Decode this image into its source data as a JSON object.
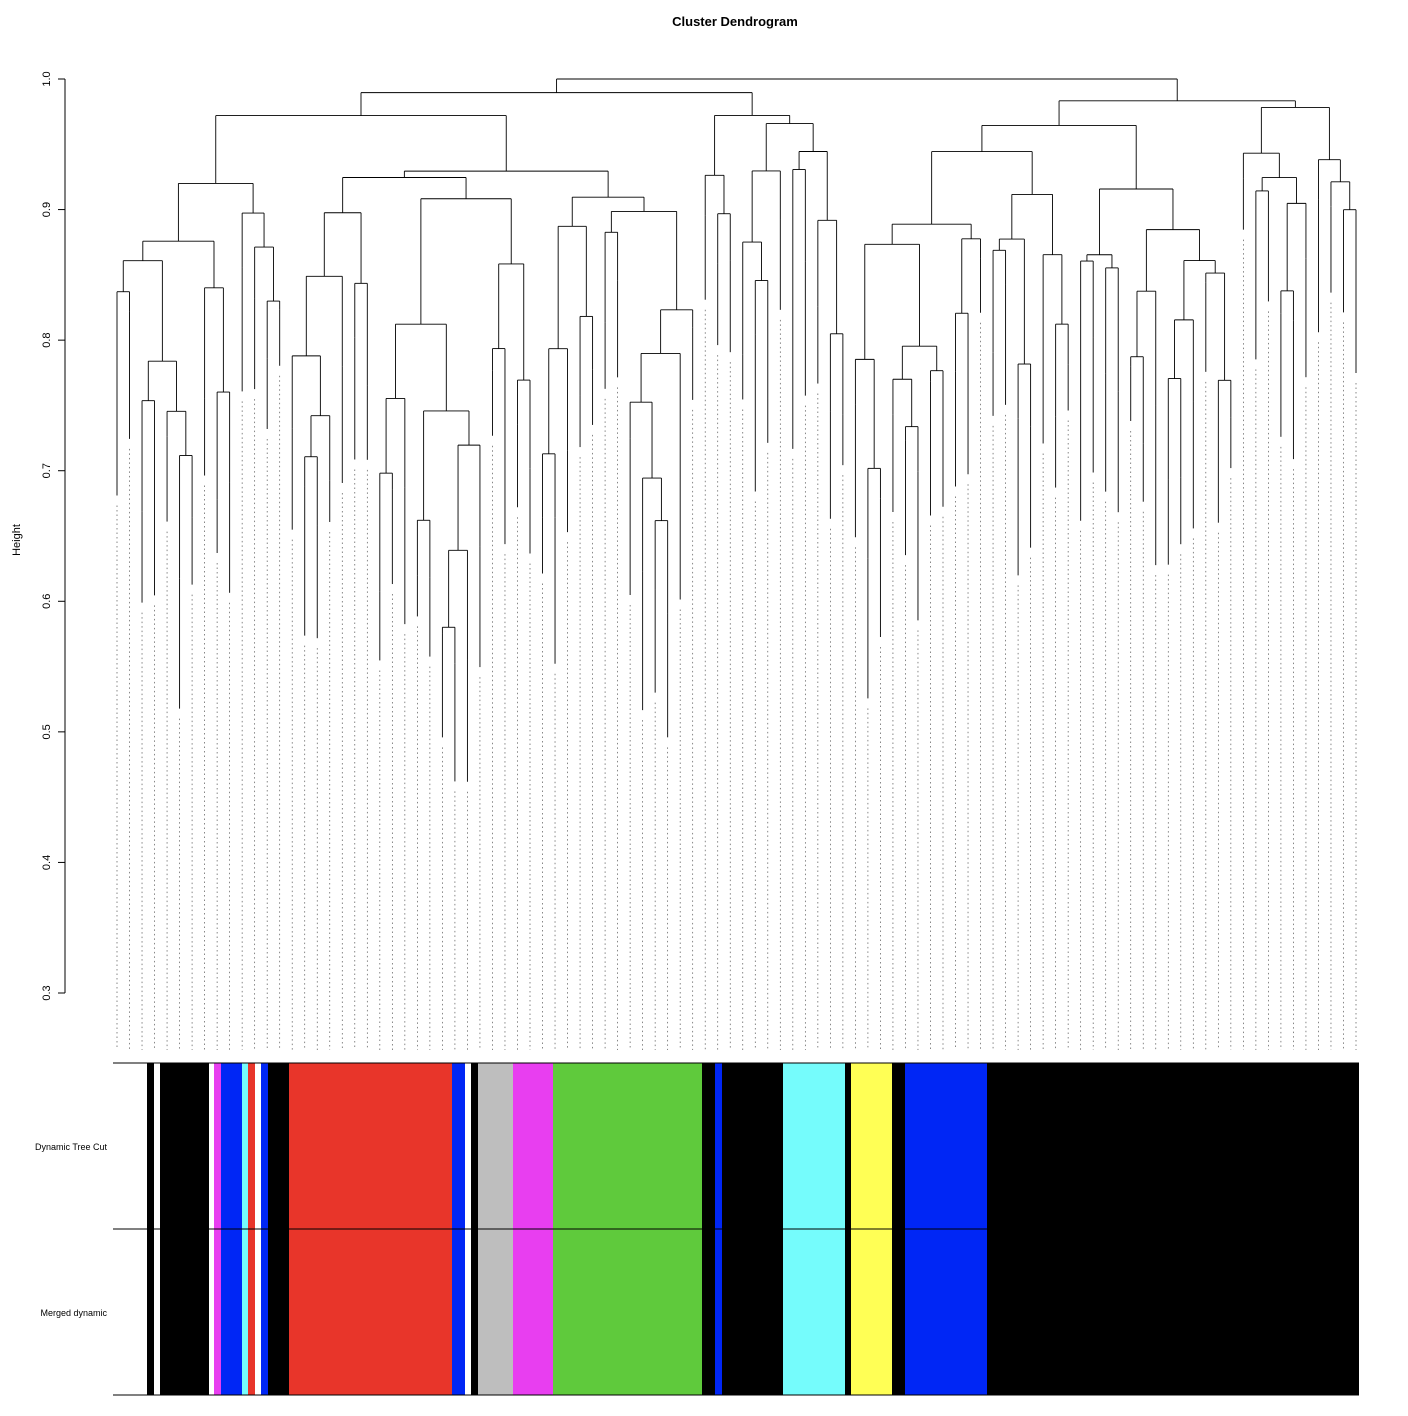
{
  "chart_data": {
    "type": "dendrogram",
    "title": "Cluster Dendrogram",
    "ylabel": "Height",
    "xlabel": "",
    "ylim": [
      0.3,
      1.0
    ],
    "yticks": [
      {
        "value": 0.3,
        "label": "0.3"
      },
      {
        "value": 0.4,
        "label": "0.4"
      },
      {
        "value": 0.5,
        "label": "0.5"
      },
      {
        "value": 0.6,
        "label": "0.6"
      },
      {
        "value": 0.7,
        "label": "0.7"
      },
      {
        "value": 0.8,
        "label": "0.8"
      },
      {
        "value": 0.9,
        "label": "0.9"
      },
      {
        "value": 1.0,
        "label": "1.0"
      }
    ],
    "color_rows": [
      {
        "label": "Dynamic Tree Cut",
        "segments": [
          {
            "x0": 113,
            "x1": 147,
            "color": "#ffffff"
          },
          {
            "x0": 147,
            "x1": 154,
            "color": "#000000"
          },
          {
            "x0": 154,
            "x1": 160,
            "color": "#ffffff"
          },
          {
            "x0": 160,
            "x1": 209,
            "color": "#000000"
          },
          {
            "x0": 209,
            "x1": 214,
            "color": "#ffffff"
          },
          {
            "x0": 214,
            "x1": 221,
            "color": "#e83ef0"
          },
          {
            "x0": 221,
            "x1": 242,
            "color": "#0026f5"
          },
          {
            "x0": 242,
            "x1": 248,
            "color": "#75fcfc"
          },
          {
            "x0": 248,
            "x1": 255,
            "color": "#e8352a"
          },
          {
            "x0": 255,
            "x1": 261,
            "color": "#ffffff"
          },
          {
            "x0": 261,
            "x1": 268,
            "color": "#0026f5"
          },
          {
            "x0": 268,
            "x1": 289,
            "color": "#000000"
          },
          {
            "x0": 289,
            "x1": 452,
            "color": "#e8352a"
          },
          {
            "x0": 452,
            "x1": 465,
            "color": "#0026f5"
          },
          {
            "x0": 465,
            "x1": 471,
            "color": "#ffffff"
          },
          {
            "x0": 471,
            "x1": 478,
            "color": "#000000"
          },
          {
            "x0": 478,
            "x1": 513,
            "color": "#bebebe"
          },
          {
            "x0": 513,
            "x1": 553,
            "color": "#e83ef0"
          },
          {
            "x0": 553,
            "x1": 702,
            "color": "#5fca3c"
          },
          {
            "x0": 702,
            "x1": 715,
            "color": "#000000"
          },
          {
            "x0": 715,
            "x1": 722,
            "color": "#0026f5"
          },
          {
            "x0": 722,
            "x1": 783,
            "color": "#000000"
          },
          {
            "x0": 783,
            "x1": 845,
            "color": "#75fcfc"
          },
          {
            "x0": 845,
            "x1": 851,
            "color": "#000000"
          },
          {
            "x0": 851,
            "x1": 892,
            "color": "#ffff55"
          },
          {
            "x0": 892,
            "x1": 905,
            "color": "#000000"
          },
          {
            "x0": 905,
            "x1": 987,
            "color": "#0026f5"
          },
          {
            "x0": 987,
            "x1": 1359,
            "color": "#000000"
          }
        ]
      },
      {
        "label": "Merged dynamic",
        "segments": [
          {
            "x0": 113,
            "x1": 147,
            "color": "#ffffff"
          },
          {
            "x0": 147,
            "x1": 154,
            "color": "#000000"
          },
          {
            "x0": 154,
            "x1": 160,
            "color": "#ffffff"
          },
          {
            "x0": 160,
            "x1": 209,
            "color": "#000000"
          },
          {
            "x0": 209,
            "x1": 214,
            "color": "#ffffff"
          },
          {
            "x0": 214,
            "x1": 221,
            "color": "#e83ef0"
          },
          {
            "x0": 221,
            "x1": 242,
            "color": "#0026f5"
          },
          {
            "x0": 242,
            "x1": 248,
            "color": "#75fcfc"
          },
          {
            "x0": 248,
            "x1": 255,
            "color": "#e8352a"
          },
          {
            "x0": 255,
            "x1": 261,
            "color": "#ffffff"
          },
          {
            "x0": 261,
            "x1": 268,
            "color": "#0026f5"
          },
          {
            "x0": 268,
            "x1": 289,
            "color": "#000000"
          },
          {
            "x0": 289,
            "x1": 452,
            "color": "#e8352a"
          },
          {
            "x0": 452,
            "x1": 465,
            "color": "#0026f5"
          },
          {
            "x0": 465,
            "x1": 471,
            "color": "#ffffff"
          },
          {
            "x0": 471,
            "x1": 478,
            "color": "#000000"
          },
          {
            "x0": 478,
            "x1": 513,
            "color": "#bebebe"
          },
          {
            "x0": 513,
            "x1": 553,
            "color": "#e83ef0"
          },
          {
            "x0": 553,
            "x1": 702,
            "color": "#5fca3c"
          },
          {
            "x0": 702,
            "x1": 715,
            "color": "#000000"
          },
          {
            "x0": 715,
            "x1": 722,
            "color": "#0026f5"
          },
          {
            "x0": 722,
            "x1": 783,
            "color": "#000000"
          },
          {
            "x0": 783,
            "x1": 845,
            "color": "#75fcfc"
          },
          {
            "x0": 845,
            "x1": 851,
            "color": "#000000"
          },
          {
            "x0": 851,
            "x1": 892,
            "color": "#ffff55"
          },
          {
            "x0": 892,
            "x1": 905,
            "color": "#000000"
          },
          {
            "x0": 905,
            "x1": 987,
            "color": "#0026f5"
          },
          {
            "x0": 987,
            "x1": 1359,
            "color": "#000000"
          }
        ]
      }
    ],
    "colors": {
      "black": "#000000",
      "white": "#ffffff",
      "red": "#e8352a",
      "blue": "#0026f5",
      "green": "#5fca3c",
      "magenta": "#e83ef0",
      "cyan": "#75fcfc",
      "yellow": "#ffff55",
      "grey": "#bebebe"
    }
  }
}
